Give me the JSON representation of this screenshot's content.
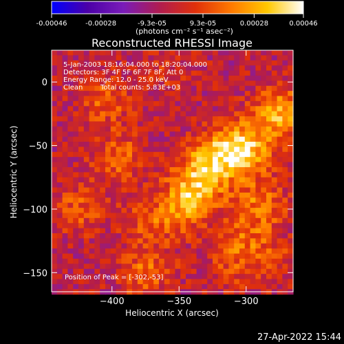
{
  "colorbar": {
    "ticks": [
      "-0.00046",
      "-0.00028",
      "-9.3e-05",
      "9.3e-05",
      "0.00028",
      "0.00046"
    ],
    "tick_values": [
      -0.00046,
      -0.00028,
      -9.3e-05,
      9.3e-05,
      0.00028,
      0.00046
    ],
    "range": [
      -0.00046,
      0.00046
    ],
    "unit_label": "(photons cm⁻² s⁻¹ asec⁻²)",
    "stops": [
      "#0000ff",
      "#4b00a8",
      "#7a1cb8",
      "#b01c50",
      "#e0300a",
      "#ff7a00",
      "#ffc800",
      "#ffffff"
    ]
  },
  "annotations": {
    "time_range": "5-Jan-2003 18:16:04.000 to 18:20:04.000",
    "detectors": "Detectors: 3F 4F 5F 6F 7F 8F, Att 0",
    "energy": "Energy Range: 12.0 - 25.0 keV",
    "clean": "Clean",
    "total_counts": "Total counts: 5.83E+03",
    "peak": "Position of Peak = [-302,-53]"
  },
  "footer_timestamp": "27-Apr-2022 15:44",
  "chart_data": {
    "type": "heatmap",
    "title": "Reconstructed RHESSI Image",
    "xlabel": "Heliocentric X (arcsec)",
    "ylabel": "Heliocentric Y (arcsec)",
    "xlim": [
      -445,
      -265
    ],
    "ylim": [
      -165,
      25
    ],
    "xticks": [
      -400,
      -350,
      -300
    ],
    "yticks": [
      0,
      -50,
      -100,
      -150
    ],
    "xtick_labels": [
      "−400",
      "−350",
      "−300"
    ],
    "ytick_labels": [
      "0",
      "−50",
      "−100",
      "−150"
    ],
    "peak": [
      -302,
      -53
    ],
    "sources": [
      {
        "x": -302,
        "y": -53,
        "value": 0.00046
      },
      {
        "x": -275,
        "y": -25,
        "value": 0.0004
      },
      {
        "x": -325,
        "y": -60,
        "value": 0.00036
      },
      {
        "x": -345,
        "y": -95,
        "value": 0.0003
      },
      {
        "x": -335,
        "y": -80,
        "value": 0.00026
      },
      {
        "x": -290,
        "y": -95,
        "value": 0.00024
      },
      {
        "x": -395,
        "y": -60,
        "value": 0.00022
      },
      {
        "x": -375,
        "y": -150,
        "value": 0.00022
      },
      {
        "x": -405,
        "y": -15,
        "value": 0.0002
      },
      {
        "x": -425,
        "y": -100,
        "value": 0.00018
      },
      {
        "x": -370,
        "y": -110,
        "value": 0.00018
      },
      {
        "x": -310,
        "y": -140,
        "value": 0.00016
      },
      {
        "x": -300,
        "y": -120,
        "value": 0.00014
      },
      {
        "x": -280,
        "y": -140,
        "value": 0.00012
      },
      {
        "x": -360,
        "y": 10,
        "value": 0.0001
      }
    ]
  }
}
